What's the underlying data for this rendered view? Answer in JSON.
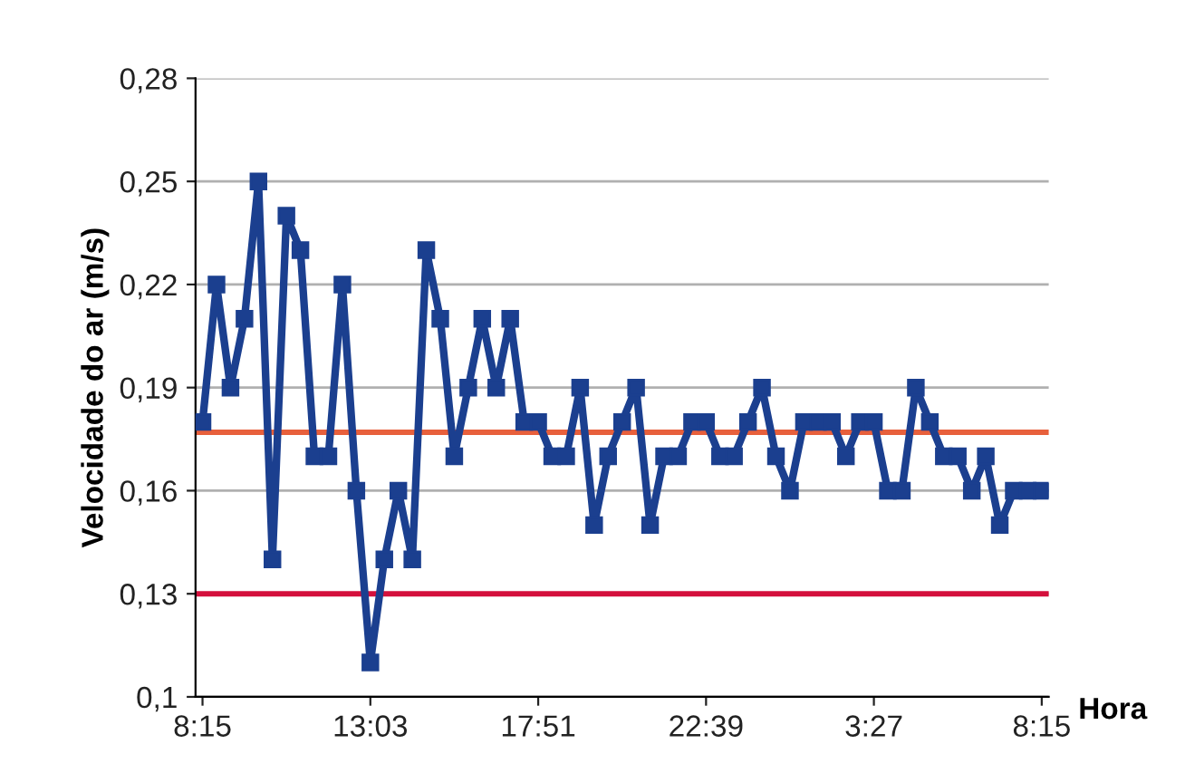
{
  "chart_data": {
    "type": "line",
    "xlabel": "Hora",
    "ylabel": "Velocidade do ar (m/s)",
    "categories": [
      "8:15",
      null,
      null,
      null,
      null,
      null,
      null,
      null,
      null,
      null,
      null,
      null,
      "13:03",
      null,
      null,
      null,
      null,
      null,
      null,
      null,
      null,
      null,
      null,
      null,
      "17:51",
      null,
      null,
      null,
      null,
      null,
      null,
      null,
      null,
      null,
      null,
      null,
      "22:39",
      null,
      null,
      null,
      null,
      null,
      null,
      null,
      null,
      null,
      null,
      null,
      "3:27",
      null,
      null,
      null,
      null,
      null,
      null,
      null,
      null,
      null,
      null,
      null,
      "8:15"
    ],
    "series": [
      {
        "color": "#1b3f8f",
        "values": [
          0.18,
          0.22,
          0.19,
          0.21,
          0.25,
          0.14,
          0.24,
          0.23,
          0.17,
          0.17,
          0.22,
          0.16,
          0.11,
          0.14,
          0.16,
          0.14,
          0.23,
          0.21,
          0.17,
          0.19,
          0.21,
          0.19,
          0.21,
          0.18,
          0.18,
          0.17,
          0.17,
          0.19,
          0.15,
          0.17,
          0.18,
          0.19,
          0.15,
          0.17,
          0.17,
          0.18,
          0.18,
          0.17,
          0.17,
          0.18,
          0.19,
          0.17,
          0.16,
          0.18,
          0.18,
          0.18,
          0.17,
          0.18,
          0.18,
          0.16,
          0.16,
          0.19,
          0.18,
          0.17,
          0.17,
          0.16,
          0.17,
          0.15,
          0.16,
          0.16,
          0.16
        ]
      }
    ],
    "ylim": [
      0.1,
      0.28
    ],
    "yticks": [
      {
        "value": 0.1,
        "label": "0,1"
      },
      {
        "value": 0.13,
        "label": "0,13"
      },
      {
        "value": 0.16,
        "label": "0,16"
      },
      {
        "value": 0.19,
        "label": "0,19"
      },
      {
        "value": 0.22,
        "label": "0,22"
      },
      {
        "value": 0.25,
        "label": "0,25"
      },
      {
        "value": 0.28,
        "label": "0,28"
      }
    ],
    "ref_lines": [
      {
        "axis": "y",
        "value": 0.177,
        "color": "#e8603c"
      },
      {
        "axis": "y",
        "value": 0.13,
        "color": "#d4103c"
      }
    ],
    "grid": "y",
    "marker": "square",
    "line_style": "solid"
  }
}
